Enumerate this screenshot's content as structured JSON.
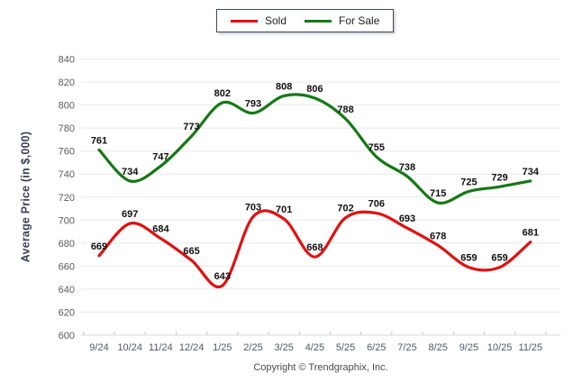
{
  "legend": {
    "sold_label": "Sold",
    "for_sale_label": "For Sale"
  },
  "footer": {
    "copyright": "Copyright © Trendgraphix, Inc."
  },
  "chart_data": {
    "type": "line",
    "title": "",
    "xlabel": "",
    "ylabel": "Average Price (in $,000)",
    "categories": [
      "9/24",
      "10/24",
      "11/24",
      "12/24",
      "1/25",
      "2/25",
      "3/25",
      "4/25",
      "5/25",
      "6/25",
      "7/25",
      "8/25",
      "9/25",
      "10/25",
      "11/25"
    ],
    "series": [
      {
        "name": "Sold",
        "color": "#e01111",
        "values": [
          669,
          697,
          684,
          665,
          643,
          703,
          701,
          668,
          702,
          706,
          693,
          678,
          659,
          659,
          681
        ]
      },
      {
        "name": "For Sale",
        "color": "#157815",
        "values": [
          761,
          734,
          747,
          773,
          802,
          793,
          808,
          806,
          788,
          755,
          738,
          715,
          725,
          729,
          734
        ]
      }
    ],
    "ylim": [
      600,
      840
    ],
    "ytick_step": 20,
    "yticks": [
      600,
      620,
      640,
      660,
      680,
      700,
      720,
      740,
      760,
      780,
      800,
      820,
      840
    ],
    "grid": "horizontal",
    "legend_position": "top-center",
    "data_labels": true
  },
  "colors": {
    "sold": "#e01111",
    "for_sale": "#157815",
    "gridline": "#e8e8e8",
    "axis_line": "#d8d8d8",
    "tick_mark": "#c9c9c9",
    "y_tick_label": "#5a5a5a",
    "x_tick_label": "#4f586b",
    "data_label": "#111111",
    "legend_border": "#3b4a63"
  }
}
